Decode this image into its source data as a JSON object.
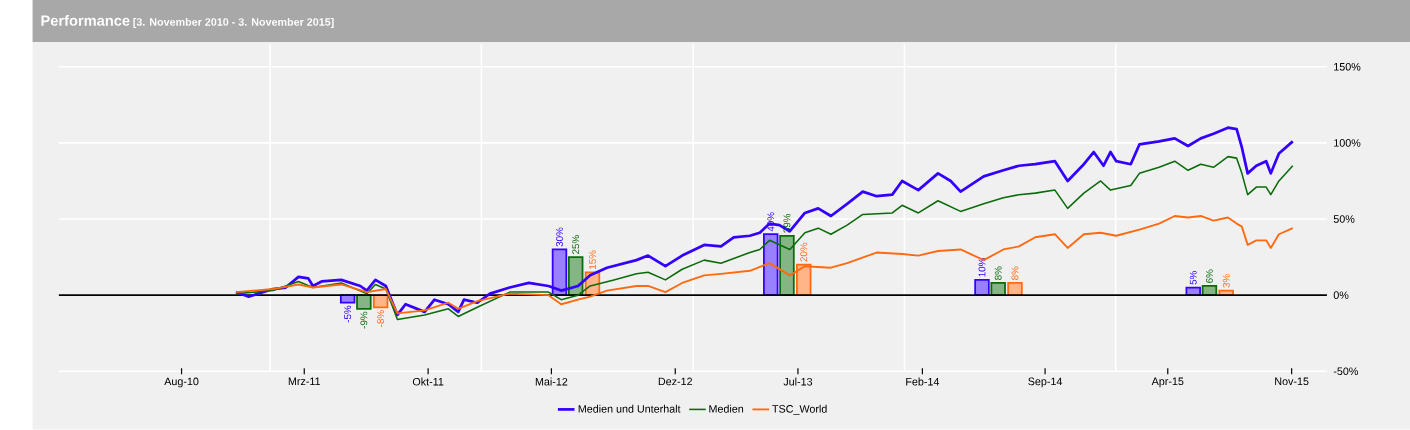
{
  "chart_data": {
    "type": "line",
    "title": "Performance",
    "subtitle": "[3. November 2010 - 3. November 2015]",
    "xlim": [
      "2010-01-01",
      "2016-01-01"
    ],
    "ylim": [
      -50,
      165
    ],
    "xticks": [
      {
        "value": "2010-08-01",
        "label": "Aug-10"
      },
      {
        "value": "2011-03-01",
        "label": "Mrz-11"
      },
      {
        "value": "2011-10-01",
        "label": "Okt-11"
      },
      {
        "value": "2012-05-01",
        "label": "Mai-12"
      },
      {
        "value": "2012-12-01",
        "label": "Dez-12"
      },
      {
        "value": "2013-07-01",
        "label": "Jul-13"
      },
      {
        "value": "2014-02-01",
        "label": "Feb-14"
      },
      {
        "value": "2014-09-01",
        "label": "Sep-14"
      },
      {
        "value": "2015-04-01",
        "label": "Apr-15"
      },
      {
        "value": "2015-11-01",
        "label": "Nov-15"
      }
    ],
    "yticks": [
      {
        "value": -50,
        "label": "-50%"
      },
      {
        "value": 0,
        "label": "0%"
      },
      {
        "value": 50,
        "label": "50%"
      },
      {
        "value": 100,
        "label": "100%"
      },
      {
        "value": 150,
        "label": "150%"
      }
    ],
    "grid": "y",
    "legend": "bottom",
    "ref_lines": [
      {
        "axis": "x",
        "value": "2011-01-01",
        "color": "#ffffff"
      },
      {
        "axis": "x",
        "value": "2012-01-01",
        "color": "#ffffff"
      },
      {
        "axis": "x",
        "value": "2013-01-01",
        "color": "#ffffff"
      },
      {
        "axis": "x",
        "value": "2014-01-01",
        "color": "#ffffff"
      },
      {
        "axis": "x",
        "value": "2015-01-01",
        "color": "#ffffff"
      },
      {
        "axis": "y",
        "value": 0,
        "color": "#000000"
      }
    ],
    "series": [
      {
        "type": "bar",
        "color": "#3300ff",
        "x": [
          "2011-05-15",
          "2012-05-15",
          "2013-05-15",
          "2014-05-15",
          "2015-05-15"
        ],
        "values": [
          -5,
          30,
          40,
          10,
          5
        ],
        "value_labels": [
          "-5%",
          "30%",
          "40%",
          "10%",
          "5%"
        ]
      },
      {
        "type": "bar",
        "color": "#0b6b0b",
        "x": [
          "2011-06-12",
          "2012-06-12",
          "2013-06-12",
          "2014-06-12",
          "2015-06-12"
        ],
        "values": [
          -9,
          25,
          39,
          8,
          6
        ],
        "value_labels": [
          "-9%",
          "25%",
          "39%",
          "8%",
          "6%"
        ]
      },
      {
        "type": "bar",
        "color": "#ff6a10",
        "x": [
          "2011-07-11",
          "2012-07-11",
          "2013-07-11",
          "2014-07-11",
          "2015-07-11"
        ],
        "values": [
          -8,
          15,
          20,
          8,
          3
        ],
        "value_labels": [
          "-8%",
          "15%",
          "20%",
          "8%",
          "3%"
        ]
      },
      {
        "name": "Medien und Unterhalt",
        "color": "#3300ff",
        "x": [
          "2010-11-03",
          "2010-11-25",
          "2011-01-06",
          "2011-01-28",
          "2011-02-19",
          "2011-03-08",
          "2011-03-16",
          "2011-03-31",
          "2011-05-04",
          "2011-06-06",
          "2011-06-17",
          "2011-07-02",
          "2011-07-20",
          "2011-08-09",
          "2011-08-23",
          "2011-09-25",
          "2011-10-12",
          "2011-11-05",
          "2011-11-22",
          "2011-12-02",
          "2011-12-25",
          "2012-01-16",
          "2012-02-19",
          "2012-03-23",
          "2012-04-26",
          "2012-05-18",
          "2012-06-16",
          "2012-07-07",
          "2012-08-05",
          "2012-09-25",
          "2012-10-15",
          "2012-11-14",
          "2012-12-13",
          "2013-01-20",
          "2013-02-18",
          "2013-03-12",
          "2013-04-09",
          "2013-04-26",
          "2013-05-13",
          "2013-05-30",
          "2013-06-17",
          "2013-07-13",
          "2013-08-05",
          "2013-08-27",
          "2013-09-24",
          "2013-10-21",
          "2013-11-14",
          "2013-12-11",
          "2013-12-28",
          "2014-01-25",
          "2014-02-28",
          "2014-03-22",
          "2014-04-08",
          "2014-05-18",
          "2014-06-21",
          "2014-07-18",
          "2014-08-15",
          "2014-09-18",
          "2014-10-10",
          "2014-11-07",
          "2014-11-24",
          "2014-12-11",
          "2014-12-23",
          "2015-01-02",
          "2015-01-27",
          "2015-02-11",
          "2015-03-17",
          "2015-04-13",
          "2015-05-06",
          "2015-05-28",
          "2015-06-19",
          "2015-07-14",
          "2015-07-29",
          "2015-08-07",
          "2015-08-17",
          "2015-09-01",
          "2015-09-18",
          "2015-09-26",
          "2015-10-10",
          "2015-11-03"
        ],
        "values": [
          2,
          -1,
          4,
          5,
          12,
          11,
          6,
          9,
          10,
          6,
          3,
          10,
          6,
          -13,
          -6,
          -11,
          -3,
          -6,
          -11,
          -3,
          -5,
          1,
          5,
          8,
          6,
          3,
          6,
          13,
          18,
          23,
          26,
          19,
          26,
          33,
          32,
          38,
          39,
          41,
          47,
          46,
          42,
          54,
          57,
          52,
          60,
          68,
          65,
          66,
          75,
          69,
          80,
          75,
          68,
          78,
          82,
          85,
          86,
          88,
          75,
          86,
          94,
          85,
          94,
          88,
          86,
          99,
          101,
          103,
          98,
          103,
          106,
          110,
          109,
          97,
          80,
          85,
          88,
          80,
          93,
          101
        ]
      },
      {
        "name": "Medien",
        "color": "#0b6b0b",
        "x": [
          "2010-11-03",
          "2011-01-06",
          "2011-02-19",
          "2011-03-16",
          "2011-05-04",
          "2011-06-17",
          "2011-07-02",
          "2011-07-20",
          "2011-08-09",
          "2011-09-25",
          "2011-11-05",
          "2011-11-22",
          "2011-12-25",
          "2012-02-19",
          "2012-04-26",
          "2012-05-18",
          "2012-06-16",
          "2012-07-07",
          "2012-08-17",
          "2012-09-25",
          "2012-10-15",
          "2012-11-14",
          "2012-12-13",
          "2013-01-20",
          "2013-02-18",
          "2013-04-09",
          "2013-04-26",
          "2013-05-13",
          "2013-06-17",
          "2013-07-13",
          "2013-08-05",
          "2013-08-27",
          "2013-09-24",
          "2013-10-21",
          "2013-12-11",
          "2013-12-28",
          "2014-01-25",
          "2014-02-28",
          "2014-04-08",
          "2014-05-18",
          "2014-06-21",
          "2014-07-18",
          "2014-08-15",
          "2014-09-18",
          "2014-10-10",
          "2014-11-07",
          "2014-12-06",
          "2014-12-23",
          "2015-01-27",
          "2015-02-11",
          "2015-03-17",
          "2015-04-13",
          "2015-05-06",
          "2015-05-28",
          "2015-06-19",
          "2015-07-14",
          "2015-07-29",
          "2015-08-07",
          "2015-08-17",
          "2015-09-01",
          "2015-09-18",
          "2015-09-26",
          "2015-10-10",
          "2015-11-03"
        ],
        "values": [
          1,
          3,
          9,
          5,
          8,
          1,
          7,
          4,
          -16,
          -13,
          -9,
          -14,
          -8,
          2,
          2,
          -3,
          0,
          6,
          10,
          14,
          15,
          10,
          17,
          23,
          21,
          28,
          30,
          36,
          30,
          41,
          44,
          40,
          46,
          53,
          54,
          59,
          54,
          62,
          55,
          60,
          64,
          66,
          67,
          69,
          57,
          67,
          75,
          69,
          72,
          80,
          84,
          88,
          82,
          86,
          84,
          91,
          90,
          80,
          66,
          71,
          71,
          66,
          75,
          85
        ]
      },
      {
        "name": "TSC_World",
        "color": "#ff6a10",
        "x": [
          "2010-11-03",
          "2011-01-06",
          "2011-02-19",
          "2011-03-16",
          "2011-05-04",
          "2011-06-17",
          "2011-07-20",
          "2011-08-09",
          "2011-09-25",
          "2011-11-05",
          "2011-11-22",
          "2011-12-25",
          "2012-02-19",
          "2012-04-26",
          "2012-05-18",
          "2012-06-16",
          "2012-07-07",
          "2012-08-05",
          "2012-09-25",
          "2012-10-15",
          "2012-11-14",
          "2012-12-13",
          "2013-01-20",
          "2013-02-18",
          "2013-04-09",
          "2013-05-13",
          "2013-06-17",
          "2013-07-13",
          "2013-08-27",
          "2013-09-24",
          "2013-11-14",
          "2013-12-28",
          "2014-01-25",
          "2014-02-28",
          "2014-04-08",
          "2014-05-18",
          "2014-06-21",
          "2014-07-18",
          "2014-08-15",
          "2014-09-18",
          "2014-10-10",
          "2014-11-07",
          "2014-12-06",
          "2015-01-02",
          "2015-02-11",
          "2015-03-17",
          "2015-04-13",
          "2015-05-06",
          "2015-05-28",
          "2015-06-19",
          "2015-07-14",
          "2015-07-29",
          "2015-08-07",
          "2015-08-17",
          "2015-09-01",
          "2015-09-18",
          "2015-09-26",
          "2015-10-10",
          "2015-11-03"
        ],
        "values": [
          2,
          4,
          7,
          5,
          7,
          2,
          4,
          -12,
          -10,
          -5,
          -9,
          -4,
          1,
          0,
          -6,
          -3,
          -1,
          3,
          6,
          6,
          2,
          8,
          13,
          14,
          16,
          21,
          13,
          19,
          18,
          21,
          28,
          27,
          26,
          29,
          30,
          23,
          30,
          32,
          38,
          40,
          31,
          40,
          41,
          39,
          43,
          47,
          52,
          51,
          52,
          49,
          51,
          47,
          45,
          33,
          36,
          36,
          31,
          40,
          44
        ]
      }
    ]
  }
}
